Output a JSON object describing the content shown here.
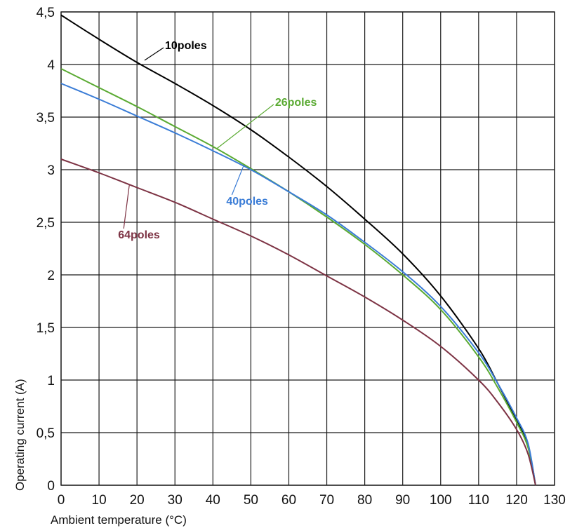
{
  "chart_data": {
    "type": "line",
    "xlabel": "Ambient temperature (°C)",
    "ylabel": "Operating current (A)",
    "xlim": [
      0,
      130
    ],
    "ylim": [
      0,
      4.5
    ],
    "x_ticks": [
      0,
      10,
      20,
      30,
      40,
      50,
      60,
      70,
      80,
      90,
      100,
      110,
      120,
      130
    ],
    "x_tick_labels": [
      "0",
      "10",
      "20",
      "30",
      "40",
      "50",
      "60",
      "70",
      "80",
      "90",
      "100",
      "110",
      "120",
      "130"
    ],
    "y_ticks": [
      0,
      0.5,
      1,
      1.5,
      2,
      2.5,
      3,
      3.5,
      4,
      4.5
    ],
    "y_tick_labels": [
      "0",
      "0,5",
      "1",
      "1,5",
      "2",
      "2,5",
      "3",
      "3,5",
      "4",
      "4,5"
    ],
    "grid": true,
    "series": [
      {
        "name": "10poles",
        "color": "#000000",
        "x": [
          0,
          10,
          20,
          30,
          40,
          50,
          60,
          70,
          80,
          90,
          100,
          110,
          115,
          120,
          123,
          125
        ],
        "y": [
          4.47,
          4.24,
          4.02,
          3.82,
          3.61,
          3.38,
          3.12,
          2.84,
          2.53,
          2.2,
          1.8,
          1.3,
          0.97,
          0.62,
          0.38,
          0.0
        ]
      },
      {
        "name": "26poles",
        "color": "#5aaa32",
        "x": [
          0,
          10,
          20,
          30,
          40,
          50,
          60,
          70,
          80,
          90,
          100,
          110,
          115,
          120,
          123,
          125
        ],
        "y": [
          3.96,
          3.78,
          3.6,
          3.41,
          3.22,
          3.01,
          2.79,
          2.55,
          2.29,
          2.0,
          1.67,
          1.22,
          0.93,
          0.6,
          0.36,
          0.0
        ]
      },
      {
        "name": "40poles",
        "color": "#3a7cd6",
        "x": [
          0,
          10,
          20,
          30,
          40,
          50,
          60,
          70,
          80,
          90,
          100,
          110,
          115,
          120,
          123,
          125
        ],
        "y": [
          3.82,
          3.67,
          3.51,
          3.35,
          3.18,
          3.0,
          2.79,
          2.57,
          2.31,
          2.03,
          1.7,
          1.26,
          0.97,
          0.64,
          0.4,
          0.0
        ]
      },
      {
        "name": "64poles",
        "color": "#7d3344",
        "x": [
          0,
          10,
          20,
          30,
          40,
          50,
          60,
          70,
          80,
          90,
          100,
          110,
          115,
          120,
          123,
          125
        ],
        "y": [
          3.1,
          2.97,
          2.83,
          2.69,
          2.53,
          2.37,
          2.19,
          1.99,
          1.79,
          1.57,
          1.32,
          1.0,
          0.79,
          0.53,
          0.3,
          0.0
        ]
      }
    ],
    "annotations": [
      {
        "series": "10poles",
        "text": "10poles",
        "point": [
          22,
          4.04
        ],
        "label_at": [
          27,
          4.16
        ],
        "color": "#000000"
      },
      {
        "series": "26poles",
        "text": "26poles",
        "point": [
          41,
          3.2
        ],
        "label_at": [
          56,
          3.62
        ],
        "color": "#5aaa32"
      },
      {
        "series": "40poles",
        "text": "40poles",
        "point": [
          48,
          3.03
        ],
        "label_at": [
          45,
          2.76
        ],
        "color": "#3a7cd6"
      },
      {
        "series": "64poles",
        "text": "64poles",
        "point": [
          18,
          2.86
        ],
        "label_at": [
          16.5,
          2.44
        ],
        "color": "#7d3344"
      }
    ]
  }
}
